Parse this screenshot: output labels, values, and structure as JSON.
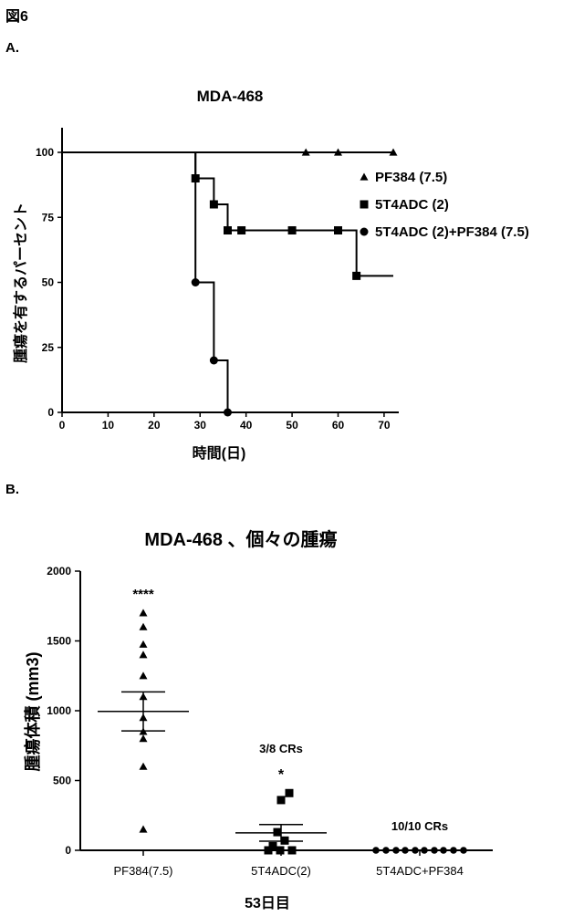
{
  "figure_label": "図6",
  "panels": {
    "a_label": "A.",
    "b_label": "B."
  },
  "chart_data": [
    {
      "type": "line",
      "subtype": "kaplan-meier",
      "title": "MDA-468",
      "xlabel": "時間(日)",
      "ylabel": "腫瘍を有するパーセント",
      "xlim": [
        0,
        72
      ],
      "ylim": [
        0,
        100
      ],
      "x_ticks": [
        0,
        10,
        20,
        30,
        40,
        50,
        60,
        70
      ],
      "y_ticks": [
        0,
        25,
        50,
        75,
        100
      ],
      "legend_position": "right",
      "series": [
        {
          "name": "PF384 (7.5)",
          "marker": "triangle",
          "steps": [
            [
              0,
              100
            ],
            [
              72,
              100
            ]
          ],
          "markers": [
            [
              53,
              100
            ],
            [
              60,
              100
            ],
            [
              72,
              100
            ]
          ]
        },
        {
          "name": "5T4ADC (2)",
          "marker": "square",
          "steps": [
            [
              0,
              100
            ],
            [
              29,
              100
            ],
            [
              29,
              90
            ],
            [
              33,
              90
            ],
            [
              33,
              80
            ],
            [
              36,
              80
            ],
            [
              36,
              70
            ],
            [
              64,
              70
            ],
            [
              64,
              52.5
            ],
            [
              72,
              52.5
            ]
          ],
          "markers": [
            [
              29,
              90
            ],
            [
              33,
              80
            ],
            [
              36,
              70
            ],
            [
              39,
              70
            ],
            [
              50,
              70
            ],
            [
              60,
              70
            ],
            [
              64,
              52.5
            ]
          ]
        },
        {
          "name": "5T4ADC (2)+PF384 (7.5)",
          "marker": "circle",
          "steps": [
            [
              0,
              100
            ],
            [
              29,
              100
            ],
            [
              29,
              50
            ],
            [
              33,
              50
            ],
            [
              33,
              20
            ],
            [
              36,
              20
            ],
            [
              36,
              0
            ]
          ],
          "markers": [
            [
              29,
              50
            ],
            [
              33,
              20
            ],
            [
              36,
              0
            ]
          ]
        }
      ]
    },
    {
      "type": "scatter",
      "title": "MDA-468 、個々の腫瘍",
      "xlabel": "53日目",
      "ylabel": "腫瘍体積 (mm3)",
      "ylim": [
        0,
        2000
      ],
      "y_ticks": [
        0,
        500,
        1000,
        1500,
        2000
      ],
      "categories": [
        "PF384(7.5)",
        "5T4ADC(2)",
        "5T4ADC+PF384"
      ],
      "groups": [
        {
          "category": "PF384(7.5)",
          "marker": "triangle",
          "values": [
            1700,
            1600,
            1475,
            1400,
            1250,
            1100,
            950,
            850,
            800,
            600,
            150
          ],
          "mean": 995,
          "sem_upper": 1135,
          "sem_lower": 855,
          "annotation": "****"
        },
        {
          "category": "5T4ADC(2)",
          "marker": "square",
          "values": [
            410,
            360,
            130,
            70,
            30,
            0,
            0,
            0
          ],
          "mean": 125,
          "sem_upper": 185,
          "sem_lower": 65,
          "annotation": "3/8 CRs",
          "significance": "*"
        },
        {
          "category": "5T4ADC+PF384",
          "marker": "circle",
          "values": [
            0,
            0,
            0,
            0,
            0,
            0,
            0,
            0,
            0,
            0
          ],
          "annotation": "10/10 CRs"
        }
      ]
    }
  ]
}
